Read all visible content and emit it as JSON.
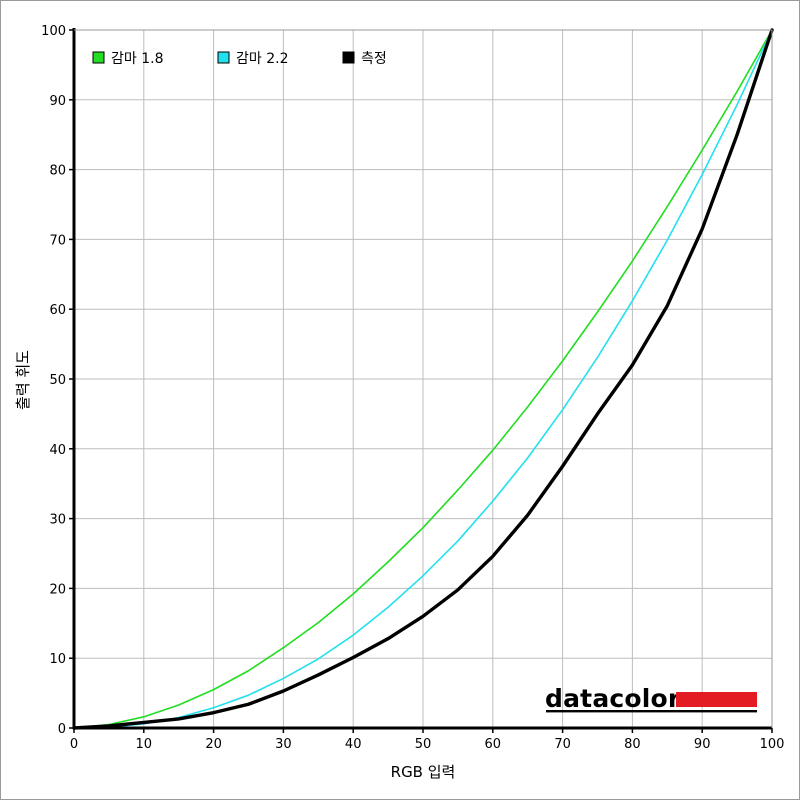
{
  "chart_data": {
    "type": "line",
    "xlabel": "RGB 입력",
    "ylabel": "출력 휘도",
    "xlim": [
      0,
      100
    ],
    "ylim": [
      0,
      100
    ],
    "x_ticks": [
      "0",
      "10",
      "20",
      "30",
      "40",
      "50",
      "60",
      "70",
      "80",
      "90",
      "100"
    ],
    "y_ticks": [
      "0",
      "10",
      "20",
      "30",
      "40",
      "50",
      "60",
      "70",
      "80",
      "90",
      "100"
    ],
    "grid": true,
    "legend_position": "top-left",
    "series": [
      {
        "name": "감마 1.8",
        "color": "#22dd22",
        "width": 1.6,
        "x": [
          0,
          5,
          10,
          15,
          20,
          25,
          30,
          35,
          40,
          45,
          50,
          55,
          60,
          65,
          70,
          75,
          80,
          85,
          90,
          95,
          100
        ],
        "y": [
          0,
          0.5,
          1.6,
          3.3,
          5.5,
          8.2,
          11.5,
          15.1,
          19.2,
          23.8,
          28.7,
          34.1,
          39.8,
          46.0,
          52.6,
          59.6,
          66.9,
          74.7,
          82.8,
          91.2,
          100
        ]
      },
      {
        "name": "감마 2.2",
        "color": "#22e0ee",
        "width": 1.6,
        "x": [
          0,
          5,
          10,
          15,
          20,
          25,
          30,
          35,
          40,
          45,
          50,
          55,
          60,
          65,
          70,
          75,
          80,
          85,
          90,
          95,
          100
        ],
        "y": [
          0,
          0.1,
          0.6,
          1.5,
          2.9,
          4.7,
          7.1,
          9.9,
          13.3,
          17.3,
          21.8,
          26.8,
          32.5,
          38.7,
          45.6,
          53.1,
          61.2,
          69.9,
          79.3,
          89.3,
          100
        ]
      },
      {
        "name": "측정",
        "color": "#000000",
        "width": 3.4,
        "x": [
          0,
          5,
          10,
          15,
          20,
          25,
          30,
          35,
          40,
          45,
          50,
          55,
          60,
          65,
          70,
          75,
          80,
          85,
          90,
          95,
          100
        ],
        "y": [
          0,
          0.3,
          0.8,
          1.3,
          2.2,
          3.4,
          5.3,
          7.6,
          10.1,
          12.8,
          16.0,
          19.8,
          24.6,
          30.5,
          37.5,
          45.0,
          52.0,
          60.5,
          71.5,
          85.0,
          100
        ]
      }
    ]
  },
  "brand": {
    "logo_text": "datacolor",
    "accent_color": "#e31b23"
  }
}
